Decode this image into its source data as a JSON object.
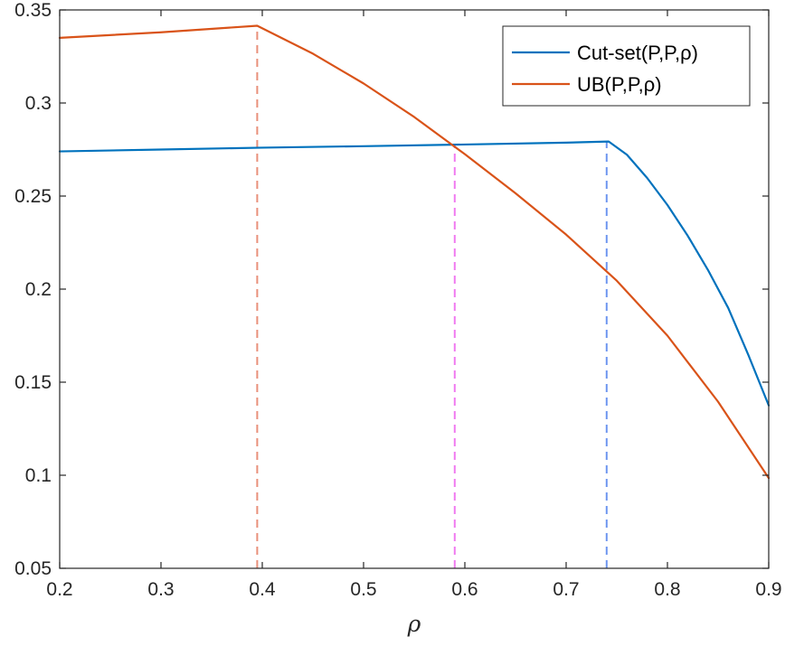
{
  "chart_data": {
    "type": "line",
    "title": "",
    "xlabel": "ρ",
    "ylabel": "",
    "xlim": [
      0.2,
      0.9
    ],
    "ylim": [
      0.05,
      0.35
    ],
    "xticks": [
      0.2,
      0.3,
      0.4,
      0.5,
      0.6,
      0.7,
      0.8,
      0.9
    ],
    "xtick_labels": [
      "0.2",
      "0.3",
      "0.4",
      "0.5",
      "0.6",
      "0.7",
      "0.8",
      "0.9"
    ],
    "yticks": [
      0.05,
      0.1,
      0.15,
      0.2,
      0.25,
      0.3,
      0.35
    ],
    "ytick_labels": [
      "0.05",
      "0.1",
      "0.15",
      "0.2",
      "0.25",
      "0.3",
      "0.35"
    ],
    "grid": false,
    "box": true,
    "legend_position": "top-right",
    "series": [
      {
        "name": "Cut-set(P,P,ρ)",
        "color": "#0072BD",
        "x": [
          0.2,
          0.3,
          0.4,
          0.5,
          0.6,
          0.7,
          0.742,
          0.76,
          0.78,
          0.8,
          0.82,
          0.84,
          0.86,
          0.88,
          0.9
        ],
        "y": [
          0.274,
          0.275,
          0.276,
          0.2768,
          0.2777,
          0.2787,
          0.2793,
          0.2722,
          0.2597,
          0.2452,
          0.2287,
          0.2103,
          0.1899,
          0.1645,
          0.1375
        ]
      },
      {
        "name": "UB(P,P,ρ)",
        "color": "#D95319",
        "x": [
          0.2,
          0.3,
          0.395,
          0.45,
          0.5,
          0.55,
          0.6,
          0.65,
          0.7,
          0.75,
          0.8,
          0.85,
          0.9
        ],
        "y": [
          0.335,
          0.338,
          0.3415,
          0.3265,
          0.3105,
          0.2925,
          0.2725,
          0.2515,
          0.2293,
          0.2045,
          0.175,
          0.1395,
          0.0985
        ]
      }
    ],
    "reference_lines": [
      {
        "x": 0.395,
        "color": "#E8907A"
      },
      {
        "x": 0.59,
        "color": "#F07BF0"
      },
      {
        "x": 0.74,
        "color": "#6E96F0"
      }
    ]
  }
}
